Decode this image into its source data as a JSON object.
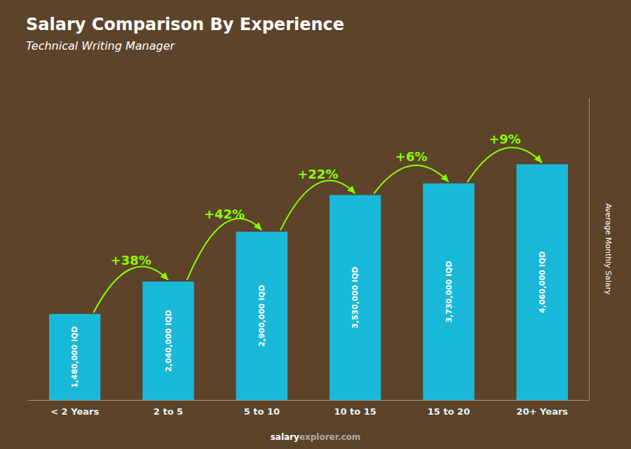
{
  "chart_data": {
    "type": "bar",
    "title": "Salary Comparison By Experience",
    "subtitle": "Technical Writing Manager",
    "ylabel": "Average Monthly Salary",
    "watermark": [
      "salary",
      "explorer.com"
    ],
    "categories": [
      "< 2 Years",
      "2 to 5",
      "5 to 10",
      "10 to 15",
      "15 to 20",
      "20+ Years"
    ],
    "values": [
      1480000,
      2040000,
      2900000,
      3530000,
      3730000,
      4060000
    ],
    "value_labels": [
      "1,480,000 IQD",
      "2,040,000 IQD",
      "2,900,000 IQD",
      "3,530,000 IQD",
      "3,730,000 IQD",
      "4,060,000 IQD"
    ],
    "data_labels": true,
    "color": "#1ab8d8",
    "annotations": [
      {
        "text": "+38%",
        "from": "< 2 Years",
        "to": "2 to 5",
        "color": "#88ff00"
      },
      {
        "text": "+42%",
        "from": "2 to 5",
        "to": "5 to 10",
        "color": "#88ff00"
      },
      {
        "text": "+22%",
        "from": "5 to 10",
        "to": "10 to 15",
        "color": "#88ff00"
      },
      {
        "text": "+6%",
        "from": "10 to 15",
        "to": "15 to 20",
        "color": "#88ff00"
      },
      {
        "text": "+9%",
        "from": "15 to 20",
        "to": "20+ Years",
        "color": "#88ff00"
      }
    ],
    "ylim": [
      0,
      5200000
    ],
    "tick_labels": "x",
    "grid": false
  }
}
